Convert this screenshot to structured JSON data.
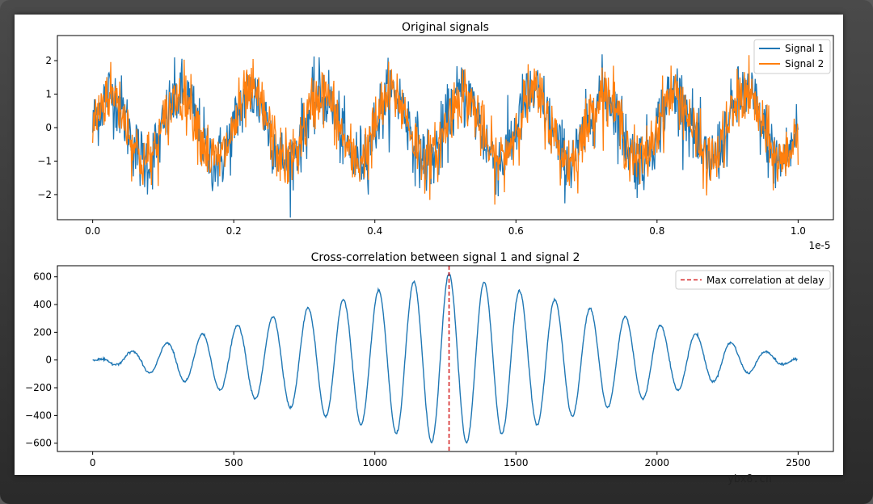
{
  "watermark": "ybx8.cn",
  "colors": {
    "signal1": "#1f77b4",
    "signal2": "#ff7f0e",
    "marker": "#d62728",
    "axis": "#000000"
  },
  "chart_data": [
    {
      "type": "line",
      "title": "Original signals",
      "xlabel": "",
      "ylabel": "",
      "x_scale_text": "1e-5",
      "xlim": [
        -0.05,
        1.05
      ],
      "ylim": [
        -2.75,
        2.75
      ],
      "xticks": [
        0.0,
        0.2,
        0.4,
        0.6,
        0.8,
        1.0
      ],
      "xtick_labels": [
        "0.0",
        "0.2",
        "0.4",
        "0.6",
        "0.8",
        "1.0"
      ],
      "yticks": [
        -2,
        -1,
        0,
        1,
        2
      ],
      "ytick_labels": [
        "−2",
        "−1",
        "0",
        "1",
        "2"
      ],
      "legend_position": "top-right",
      "series": [
        {
          "name": "Signal 1",
          "color": "#1f77b4",
          "frequency_cycles": 10,
          "amplitude": 1.0,
          "phase": 0.0,
          "noise_amplitude": 0.5,
          "points": 1250
        },
        {
          "name": "Signal 2",
          "color": "#ff7f0e",
          "frequency_cycles": 10,
          "amplitude": 1.0,
          "phase": 0.0,
          "noise_amplitude": 0.45,
          "points": 1250
        }
      ]
    },
    {
      "type": "line",
      "title": "Cross-correlation between signal 1 and signal 2",
      "xlabel": "",
      "ylabel": "",
      "xlim": [
        -125,
        2625
      ],
      "ylim": [
        -660,
        680
      ],
      "xticks": [
        0,
        500,
        1000,
        1500,
        2000,
        2500
      ],
      "xtick_labels": [
        "0",
        "500",
        "1000",
        "1500",
        "2000",
        "2500"
      ],
      "yticks": [
        -600,
        -400,
        -200,
        0,
        200,
        400,
        600
      ],
      "ytick_labels": [
        "−600",
        "−400",
        "−200",
        "0",
        "200",
        "400",
        "600"
      ],
      "legend_position": "top-right",
      "peak_lag": 1263,
      "peak_value": 625,
      "lag_range": [
        0,
        2498
      ],
      "oscillation_period": 125,
      "series": [
        {
          "name": "Cross-correlation",
          "color": "#1f77b4"
        }
      ],
      "annotations": [
        {
          "type": "vline",
          "x": 1263,
          "style": "dashed",
          "color": "#d62728",
          "label": "Max correlation at delay"
        }
      ]
    }
  ]
}
